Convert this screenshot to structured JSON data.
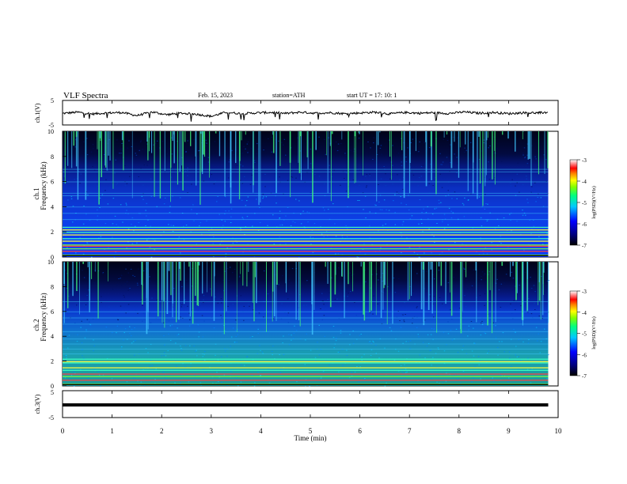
{
  "header": {
    "title": "VLF  Spectra",
    "date": "Feb. 15, 2023",
    "station": "station=ATH",
    "start": "start  UT  =    17: 10: 1"
  },
  "chart_data": [
    {
      "type": "line",
      "name": "ch1-waveform",
      "ylabel": "ch.1(V)",
      "yticks": [
        "5",
        "-5"
      ],
      "ylim": [
        -5,
        5
      ],
      "xlim": [
        0,
        10
      ],
      "x": [
        0,
        0.3,
        0.6,
        0.9,
        1.2,
        1.5,
        1.8,
        2.1,
        2.4,
        2.7,
        3.0,
        3.3,
        3.6,
        3.9,
        4.2,
        4.5,
        4.8,
        5.1,
        5.4,
        5.7,
        6.0,
        6.3,
        6.6,
        6.9,
        7.2,
        7.5,
        7.8,
        8.1,
        8.4,
        8.7,
        9.0,
        9.3,
        9.6,
        9.8
      ],
      "y": [
        -0.3,
        0.2,
        -0.5,
        -0.1,
        0.1,
        -1.2,
        0.3,
        -0.8,
        -0.2,
        -0.6,
        -1.5,
        0.2,
        -0.4,
        -0.1,
        0.1,
        -0.3,
        0.2,
        -0.2,
        0.0,
        -0.4,
        -0.1,
        0.2,
        -0.5,
        0.1,
        -0.2,
        0.0,
        -0.3,
        0.3,
        -0.2,
        0.1,
        -0.4,
        0.0,
        -0.1,
        0.2
      ]
    },
    {
      "type": "heatmap",
      "name": "ch1-spectrogram",
      "ylabel": "ch.1\nFrequency (kHz)",
      "yticks": [
        "0",
        "2",
        "4",
        "6",
        "8",
        "10"
      ],
      "ylim": [
        0,
        10
      ],
      "xlim": [
        0,
        9.8
      ],
      "colorbar": {
        "label": "log(PSD)(V²/Hz)",
        "ticks": [
          "-3",
          "-4",
          "-5",
          "-6",
          "-7"
        ],
        "range": [
          -7,
          -3
        ]
      },
      "bands_khz": [
        0.2,
        0.5,
        0.7,
        0.9,
        1.0,
        1.3,
        1.5,
        1.8,
        2.0,
        2.2,
        2.4,
        3.0,
        3.5,
        4.0,
        4.9,
        5.1,
        6.0,
        6.8,
        7.0
      ]
    },
    {
      "type": "heatmap",
      "name": "ch2-spectrogram",
      "ylabel": "ch.2\nFrequency (kHz)",
      "yticks": [
        "0",
        "2",
        "4",
        "6",
        "8",
        "10"
      ],
      "ylim": [
        0,
        10
      ],
      "xlim": [
        0,
        9.8
      ],
      "colorbar": {
        "label": "log(PSD)(V²/Hz)",
        "ticks": [
          "-3",
          "-4",
          "-5",
          "-6",
          "-7"
        ],
        "range": [
          -7,
          -3
        ]
      },
      "bands_khz": [
        0.2,
        0.5,
        0.8,
        1.0,
        1.3,
        1.5,
        1.9,
        2.0,
        2.2,
        2.6,
        3.0,
        3.4,
        3.8,
        4.4,
        5.0,
        5.5,
        6.0,
        6.8
      ]
    },
    {
      "type": "line",
      "name": "ch3-waveform",
      "ylabel": "ch.3(V)",
      "yticks": [
        "5",
        "-5"
      ],
      "ylim": [
        -5,
        5
      ],
      "xlim": [
        0,
        10
      ],
      "x": [
        0,
        9.8
      ],
      "y": [
        -0.3,
        -0.3
      ],
      "xlabel": "Time  (min)",
      "xticks": [
        "0",
        "1",
        "2",
        "3",
        "4",
        "5",
        "6",
        "7",
        "8",
        "9",
        "10"
      ]
    }
  ]
}
